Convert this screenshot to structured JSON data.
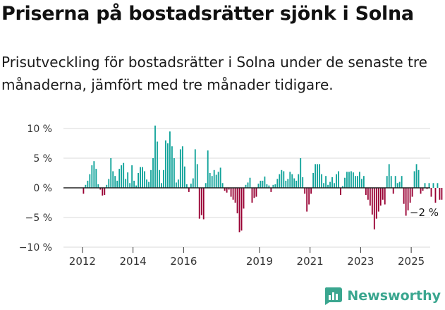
{
  "chart_data": {
    "type": "bar",
    "title": "Priserna på bostadsrätter sjönk i Solna",
    "subtitle": "Prisutveckling för bostadsrätter i Solna under de senaste tre månaderna, jämfört med tre månader tidigare.",
    "ylabel": "",
    "xlabel": "",
    "ylim": [
      -10,
      12
    ],
    "yticks": [
      10,
      5,
      0,
      -5,
      -10
    ],
    "ytick_labels": [
      "10 %",
      "5 %",
      "0 %",
      "−5 %",
      "−10 %"
    ],
    "xticks": [
      2012,
      2014,
      2016,
      2019,
      2021,
      2023,
      2025
    ],
    "xlim": [
      2011.25,
      2025.75
    ],
    "colors": {
      "positive": "#11a39a",
      "negative": "#990033",
      "grid": "#d9d9d9"
    },
    "annotation": {
      "text": "−2 %",
      "x": 2025.4,
      "y": -2
    },
    "series": [
      {
        "name": "Prisutveckling",
        "start_year": 2012,
        "period": "month",
        "values": [
          -1.0,
          0.5,
          1.2,
          2.3,
          3.8,
          4.5,
          3.2,
          0.6,
          -0.3,
          -1.3,
          -1.2,
          0.5,
          1.5,
          5.0,
          2.8,
          2.0,
          1.2,
          3.2,
          3.8,
          4.2,
          1.5,
          2.6,
          0.8,
          3.8,
          1.2,
          0.4,
          2.5,
          3.5,
          3.5,
          2.8,
          1.4,
          1.0,
          3.0,
          5.0,
          10.5,
          7.8,
          3.0,
          0.8,
          3.0,
          8.0,
          7.5,
          9.5,
          7.0,
          5.0,
          0.9,
          1.4,
          6.5,
          7.0,
          3.6,
          0.6,
          -0.7,
          0.7,
          1.6,
          6.5,
          4.0,
          -5.2,
          -4.6,
          -5.3,
          0.8,
          6.3,
          2.5,
          2.0,
          3.0,
          2.2,
          2.7,
          3.4,
          0.8,
          -0.5,
          -0.8,
          -0.3,
          -1.5,
          -2.0,
          -2.5,
          -4.3,
          -7.5,
          -7.2,
          -3.5,
          0.5,
          0.9,
          1.7,
          -2.5,
          -1.7,
          -1.5,
          0.7,
          1.2,
          1.2,
          1.9,
          0.6,
          0.4,
          -0.7,
          0.5,
          0.6,
          1.5,
          2.3,
          3.0,
          2.8,
          1.2,
          1.5,
          2.7,
          2.3,
          1.6,
          1.2,
          2.3,
          5.0,
          1.8,
          -1.0,
          -4.0,
          -2.8,
          -1.0,
          2.5,
          4.0,
          4.0,
          4.0,
          2.3,
          0.8,
          2.0,
          0.5,
          1.0,
          1.8,
          0.8,
          2.3,
          2.8,
          -1.2,
          0.3,
          1.7,
          2.7,
          2.7,
          2.8,
          2.6,
          2.0,
          2.0,
          2.7,
          1.5,
          2.0,
          -1.2,
          -2.0,
          -3.0,
          -4.5,
          -7.0,
          -5.2,
          -4.0,
          -3.0,
          -2.0,
          -2.8,
          2.0,
          4.0,
          2.0,
          -1.0,
          2.0,
          0.8,
          1.0,
          2.0,
          -2.7,
          -4.7,
          -3.8,
          -2.5,
          -1.5,
          2.8,
          4.0,
          3.0,
          -1.0,
          -0.5,
          0.8,
          -0.2,
          0.8,
          -1.5,
          0.8,
          -2.5,
          0.8,
          -2.0,
          -2.0
        ]
      }
    ]
  },
  "brand": {
    "name": "Newsworthy"
  }
}
